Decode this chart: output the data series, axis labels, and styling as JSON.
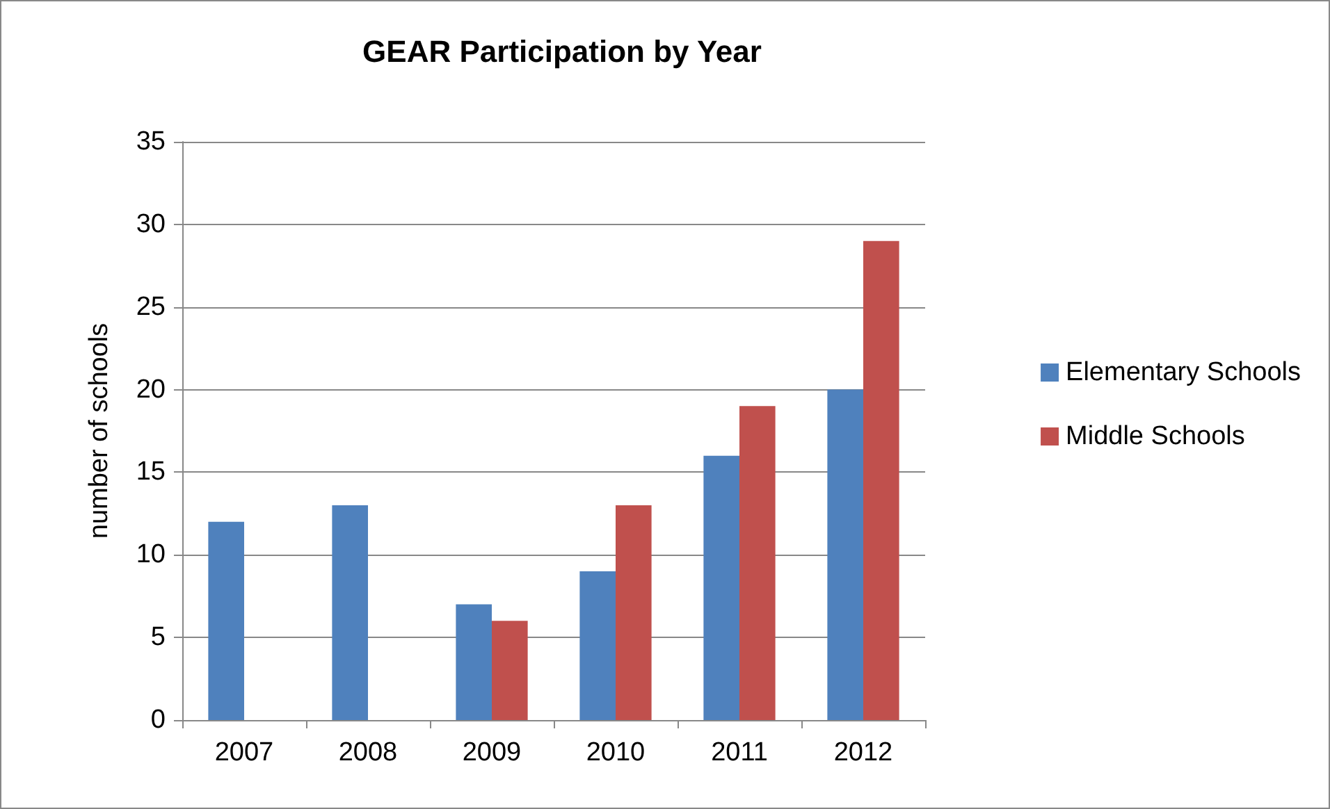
{
  "chart_data": {
    "type": "bar",
    "title": "GEAR Participation by Year",
    "ylabel": "number of schools",
    "categories": [
      "2007",
      "2008",
      "2009",
      "2010",
      "2011",
      "2012"
    ],
    "series": [
      {
        "name": "Elementary Schools",
        "color": "#4f81bd",
        "values": [
          12,
          13,
          7,
          9,
          16,
          20
        ]
      },
      {
        "name": "Middle Schools",
        "color": "#c0504d",
        "values": [
          0,
          0,
          6,
          13,
          19,
          29
        ]
      }
    ],
    "ylim": [
      0,
      35
    ],
    "yticks": [
      0,
      5,
      10,
      15,
      20,
      25,
      30,
      35
    ],
    "grid": "y",
    "legend": "right"
  }
}
